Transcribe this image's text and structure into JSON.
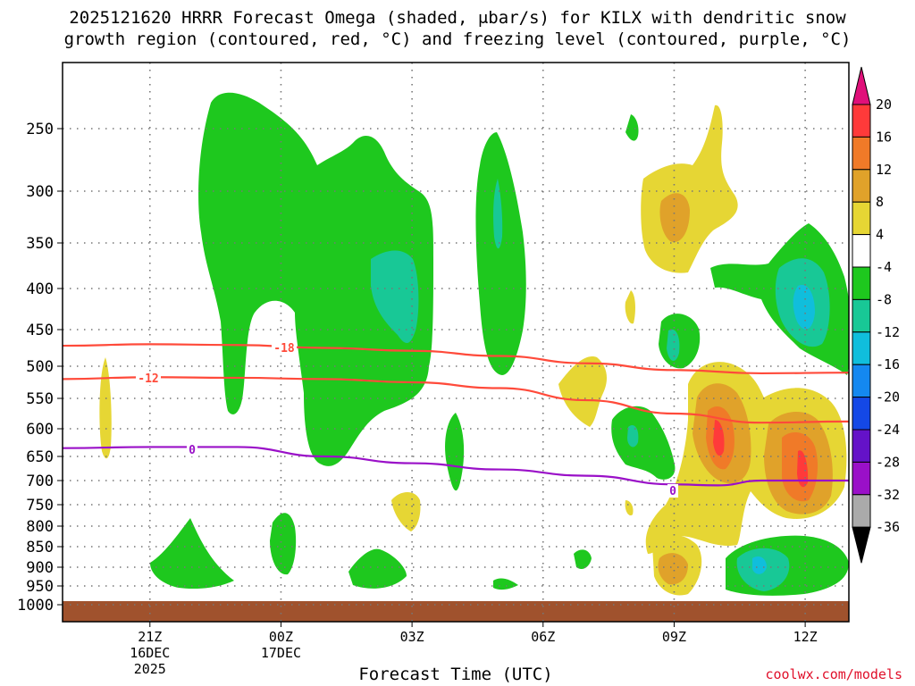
{
  "header": {
    "title_line1": "2025121620 HRRR Forecast Omega (shaded, μbar/s) for KILX with dendritic snow",
    "title_line2": "growth region (contoured, red, °C) and freezing level (contoured, purple, °C)"
  },
  "footer": {
    "xlabel": "Forecast Time (UTC)",
    "credit": "coolwx.com/models"
  },
  "chart_data": {
    "type": "heatmap",
    "title": "2025121620 HRRR Forecast Omega (shaded, μbar/s) for KILX with dendritic snow growth region (contoured, red, °C) and freezing level (contoured, purple, °C)",
    "xlabel": "Forecast Time (UTC)",
    "ylabel": "",
    "y_axis": {
      "ticks": [
        250,
        300,
        350,
        400,
        450,
        500,
        550,
        600,
        650,
        700,
        750,
        800,
        850,
        900,
        950,
        1000
      ],
      "tick_labels": [
        "250",
        "300",
        "350",
        "400",
        "450",
        "500",
        "550",
        "600",
        "650",
        "700",
        "750",
        "800",
        "850",
        "900",
        "950",
        "1000"
      ],
      "range": [
        200,
        1013
      ],
      "inverted": true,
      "scale": "log-pressure"
    },
    "x_axis": {
      "range_hours": [
        -1,
        17
      ],
      "ticks": [
        {
          "hour": 1,
          "label": "21Z",
          "sub1": "16DEC",
          "sub2": "2025"
        },
        {
          "hour": 4,
          "label": "00Z",
          "sub1": "17DEC",
          "sub2": ""
        },
        {
          "hour": 7,
          "label": "03Z",
          "sub1": "",
          "sub2": ""
        },
        {
          "hour": 10,
          "label": "06Z",
          "sub1": "",
          "sub2": ""
        },
        {
          "hour": 13,
          "label": "09Z",
          "sub1": "",
          "sub2": ""
        },
        {
          "hour": 16,
          "label": "12Z",
          "sub1": "",
          "sub2": ""
        }
      ]
    },
    "grid": true,
    "colorbar": {
      "labels": [
        "20",
        "16",
        "12",
        "8",
        "4",
        "-4",
        "-8",
        "-12",
        "-16",
        "-20",
        "-24",
        "-28",
        "-32",
        "-36"
      ],
      "colors": [
        "#ff3a3a",
        "#f07a28",
        "#e0a22a",
        "#e6d634",
        "#ffffff",
        "#1ec81e",
        "#18c896",
        "#10bedc",
        "#1488f0",
        "#1448e6",
        "#6412c8",
        "#9a10c8",
        "#aaaaaa"
      ],
      "top_cap_color": "#e0107a",
      "bottom_cap_color": "#000000"
    },
    "terrain_color": "#a0522d",
    "contours": [
      {
        "name": "-18",
        "color": "#ff4a3a",
        "label": "-18",
        "points": [
          [
            -1,
            472
          ],
          [
            1,
            470
          ],
          [
            3,
            471
          ],
          [
            5,
            475
          ],
          [
            7,
            479
          ],
          [
            9,
            486
          ],
          [
            11,
            496
          ],
          [
            13,
            506
          ],
          [
            15,
            511
          ],
          [
            17,
            510
          ]
        ]
      },
      {
        "name": "-12",
        "color": "#ff4a3a",
        "label": "-12",
        "points": [
          [
            -1,
            520
          ],
          [
            1,
            517
          ],
          [
            3,
            518
          ],
          [
            5,
            520
          ],
          [
            7,
            525
          ],
          [
            9,
            534
          ],
          [
            11,
            553
          ],
          [
            13,
            575
          ],
          [
            15,
            590
          ],
          [
            17,
            588
          ]
        ]
      },
      {
        "name": "0",
        "color": "#9a10c8",
        "label": "0",
        "points": [
          [
            -1,
            635
          ],
          [
            1,
            633
          ],
          [
            3,
            633
          ],
          [
            5,
            650
          ],
          [
            7,
            664
          ],
          [
            9,
            677
          ],
          [
            11,
            690
          ],
          [
            13,
            708
          ],
          [
            14,
            710
          ],
          [
            15,
            700
          ],
          [
            17,
            700
          ]
        ]
      }
    ]
  }
}
